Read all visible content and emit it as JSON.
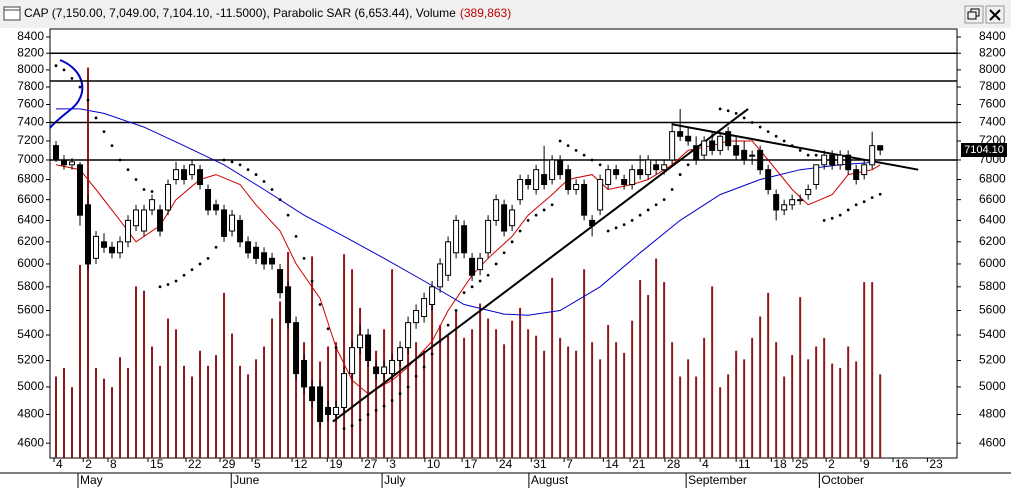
{
  "chart_data": {
    "type": "candlestick",
    "title": "CAP (7,150.00, 7,049.00, 7,104.10, -11.5000), Parabolic SAR (6,653.44), Volume",
    "volume_value": "(389,863)",
    "last_label": "7104.10",
    "log_y": true,
    "ylim": [
      4500,
      8500
    ],
    "yticks": [
      4600,
      4800,
      5000,
      5200,
      5400,
      5600,
      5800,
      6000,
      6200,
      6400,
      6600,
      6800,
      7000,
      7200,
      7400,
      7600,
      7800,
      8000,
      8200,
      8400
    ],
    "xlim": [
      -0.75,
      112.6
    ],
    "xticks": [
      {
        "value": -0.25,
        "label": "4"
      },
      {
        "value": 3.4,
        "label": "2"
      },
      {
        "value": 6.5,
        "label": "8"
      },
      {
        "value": 11.5,
        "label": "15"
      },
      {
        "value": 16.25,
        "label": "22"
      },
      {
        "value": 20.5,
        "label": "29"
      },
      {
        "value": 24.5,
        "label": "5"
      },
      {
        "value": 29.5,
        "label": "12"
      },
      {
        "value": 33.9,
        "label": "19"
      },
      {
        "value": 38.25,
        "label": "27"
      },
      {
        "value": 41.4,
        "label": "3"
      },
      {
        "value": 46.1,
        "label": "10"
      },
      {
        "value": 50.75,
        "label": "17"
      },
      {
        "value": 55.1,
        "label": "24"
      },
      {
        "value": 59.4,
        "label": "31"
      },
      {
        "value": 63.5,
        "label": "7"
      },
      {
        "value": 68.4,
        "label": "14"
      },
      {
        "value": 71.75,
        "label": "21"
      },
      {
        "value": 76.1,
        "label": "28"
      },
      {
        "value": 80.5,
        "label": "4"
      },
      {
        "value": 85,
        "label": "11"
      },
      {
        "value": 89.4,
        "label": "18"
      },
      {
        "value": 92.1,
        "label": "25"
      },
      {
        "value": 96.25,
        "label": "2"
      },
      {
        "value": 100.6,
        "label": "9"
      },
      {
        "value": 104.6,
        "label": "16"
      },
      {
        "value": 108.9,
        "label": "23"
      }
    ],
    "month_ticks": [
      {
        "value": 2.75,
        "label": "May"
      },
      {
        "value": 21.9,
        "label": "June"
      },
      {
        "value": 40.75,
        "label": "July"
      },
      {
        "value": 59.1,
        "label": "August"
      },
      {
        "value": 78.75,
        "label": "September"
      },
      {
        "value": 95.4,
        "label": "October"
      }
    ],
    "candle_up_color": "#ffffff",
    "candle_down_color": "#000000",
    "ohlc": [
      [
        7150,
        7200,
        6980,
        7000
      ],
      [
        7000,
        7050,
        6900,
        6950
      ],
      [
        6950,
        7020,
        6900,
        6980
      ],
      [
        6950,
        6980,
        6350,
        6450
      ],
      [
        6550,
        6650,
        5950,
        6000
      ],
      [
        6050,
        6300,
        6000,
        6250
      ],
      [
        6200,
        6280,
        6100,
        6150
      ],
      [
        6150,
        6200,
        6050,
        6100
      ],
      [
        6100,
        6250,
        6050,
        6200
      ],
      [
        6200,
        6450,
        6150,
        6400
      ],
      [
        6350,
        6550,
        6300,
        6500
      ],
      [
        6300,
        6550,
        6250,
        6500
      ],
      [
        6500,
        6650,
        6450,
        6600
      ],
      [
        6500,
        6550,
        6250,
        6300
      ],
      [
        6500,
        6800,
        6450,
        6750
      ],
      [
        6800,
        6980,
        6750,
        6900
      ],
      [
        6900,
        6950,
        6750,
        6800
      ],
      [
        6850,
        7000,
        6800,
        6950
      ],
      [
        6900,
        6950,
        6700,
        6750
      ],
      [
        6700,
        6750,
        6450,
        6500
      ],
      [
        6550,
        6600,
        6450,
        6500
      ],
      [
        6500,
        6550,
        6200,
        6250
      ],
      [
        6300,
        6500,
        6250,
        6450
      ],
      [
        6400,
        6450,
        6150,
        6200
      ],
      [
        6200,
        6250,
        6050,
        6100
      ],
      [
        6150,
        6200,
        6000,
        6050
      ],
      [
        6100,
        6150,
        5950,
        6000
      ],
      [
        6050,
        6100,
        5950,
        6000
      ],
      [
        5950,
        6000,
        5700,
        5750
      ],
      [
        5800,
        5850,
        5450,
        5500
      ],
      [
        5500,
        5550,
        5050,
        5100
      ],
      [
        5200,
        5250,
        4950,
        5000
      ],
      [
        5000,
        5050,
        4850,
        4900
      ],
      [
        5000,
        5050,
        4700,
        4750
      ],
      [
        4850,
        4900,
        4750,
        4800
      ],
      [
        4800,
        4900,
        4750,
        4850
      ],
      [
        4850,
        5150,
        4800,
        5100
      ],
      [
        5100,
        5350,
        5050,
        5300
      ],
      [
        5300,
        5480,
        5250,
        5400
      ],
      [
        5400,
        5450,
        5150,
        5200
      ],
      [
        5150,
        5200,
        5050,
        5100
      ],
      [
        5100,
        5200,
        5050,
        5150
      ],
      [
        5100,
        5250,
        5050,
        5200
      ],
      [
        5200,
        5350,
        5150,
        5300
      ],
      [
        5300,
        5550,
        5250,
        5500
      ],
      [
        5500,
        5650,
        5450,
        5600
      ],
      [
        5550,
        5750,
        5500,
        5700
      ],
      [
        5650,
        5850,
        5600,
        5800
      ],
      [
        5800,
        6050,
        5750,
        6000
      ],
      [
        5900,
        6250,
        5850,
        6200
      ],
      [
        6100,
        6450,
        6050,
        6400
      ],
      [
        6350,
        6400,
        6050,
        6100
      ],
      [
        6050,
        6100,
        5850,
        5900
      ],
      [
        5950,
        6100,
        5900,
        6050
      ],
      [
        6100,
        6450,
        6050,
        6400
      ],
      [
        6400,
        6650,
        6350,
        6600
      ],
      [
        6550,
        6600,
        6250,
        6300
      ],
      [
        6350,
        6550,
        6300,
        6500
      ],
      [
        6600,
        6850,
        6550,
        6800
      ],
      [
        6800,
        6850,
        6700,
        6750
      ],
      [
        6700,
        6950,
        6650,
        6900
      ],
      [
        6850,
        7150,
        6700,
        6750
      ],
      [
        6800,
        7050,
        6750,
        7000
      ],
      [
        7000,
        7050,
        6800,
        6850
      ],
      [
        6900,
        6950,
        6650,
        6700
      ],
      [
        6700,
        6800,
        6650,
        6750
      ],
      [
        6750,
        6800,
        6400,
        6450
      ],
      [
        6400,
        6450,
        6250,
        6350
      ],
      [
        6500,
        6850,
        6450,
        6800
      ],
      [
        6750,
        6950,
        6700,
        6900
      ],
      [
        6900,
        6950,
        6800,
        6850
      ],
      [
        6800,
        6850,
        6700,
        6750
      ],
      [
        6750,
        6950,
        6700,
        6900
      ],
      [
        6900,
        7050,
        6800,
        6850
      ],
      [
        6850,
        7050,
        6800,
        7000
      ],
      [
        6950,
        7000,
        6850,
        6900
      ],
      [
        6900,
        7000,
        6850,
        6950
      ],
      [
        7000,
        7400,
        6950,
        7300
      ],
      [
        7300,
        7550,
        7200,
        7250
      ],
      [
        7250,
        7350,
        7150,
        7200
      ],
      [
        7150,
        7250,
        6950,
        7000
      ],
      [
        7050,
        7250,
        7000,
        7200
      ],
      [
        7200,
        7300,
        7050,
        7100
      ],
      [
        7100,
        7300,
        7050,
        7250
      ],
      [
        7300,
        7350,
        7100,
        7150
      ],
      [
        7150,
        7250,
        7000,
        7050
      ],
      [
        7100,
        7200,
        6950,
        7000
      ],
      [
        7050,
        7100,
        6950,
        7050
      ],
      [
        7100,
        7150,
        6850,
        6900
      ],
      [
        6900,
        6950,
        6650,
        6700
      ],
      [
        6650,
        6700,
        6400,
        6500
      ],
      [
        6500,
        6600,
        6450,
        6550
      ],
      [
        6550,
        6650,
        6500,
        6600
      ],
      [
        6600,
        6650,
        6550,
        6600
      ],
      [
        6650,
        6750,
        6600,
        6700
      ],
      [
        6750,
        6950,
        6700,
        6950
      ],
      [
        6950,
        7100,
        6900,
        7050
      ],
      [
        7050,
        7100,
        6900,
        6950
      ],
      [
        6950,
        7100,
        6900,
        7050
      ],
      [
        7050,
        7100,
        6850,
        6900
      ],
      [
        6900,
        6950,
        6750,
        6800
      ],
      [
        6850,
        7000,
        6800,
        6950
      ],
      [
        6950,
        7300,
        6900,
        7150
      ],
      [
        7150,
        7150,
        7049,
        7104.1
      ]
    ],
    "volume_lim": [
      0,
      2000000
    ],
    "volume_color": "#8b1a1a",
    "volume": [
      380000,
      420000,
      330000,
      900000,
      1820000,
      420000,
      370000,
      330000,
      470000,
      420000,
      800000,
      780000,
      520000,
      430000,
      650000,
      600000,
      430000,
      380000,
      500000,
      430000,
      480000,
      770000,
      580000,
      430000,
      390000,
      460000,
      520000,
      650000,
      730000,
      960000,
      560000,
      540000,
      940000,
      450000,
      520000,
      540000,
      950000,
      880000,
      700000,
      560000,
      500000,
      600000,
      880000,
      520000,
      600000,
      540000,
      500000,
      760000,
      620000,
      570000,
      680000,
      560000,
      600000,
      720000,
      650000,
      600000,
      530000,
      640000,
      700000,
      600000,
      570000,
      500000,
      840000,
      560000,
      520000,
      500000,
      880000,
      540000,
      460000,
      620000,
      540000,
      490000,
      640000,
      830000,
      760000,
      930000,
      820000,
      540000,
      380000,
      460000,
      380000,
      560000,
      800000,
      330000,
      390000,
      500000,
      460000,
      560000,
      660000,
      770000,
      540000,
      380000,
      480000,
      750000,
      460000,
      520000,
      560000,
      440000,
      420000,
      520000,
      450000,
      820000,
      820000,
      389863
    ],
    "sar_color": "#000000",
    "sar": [
      8050,
      8000,
      7900,
      7800,
      7650,
      7450,
      7300,
      7150,
      7000,
      6900,
      6800,
      6700,
      6680,
      5800,
      5820,
      5850,
      5900,
      5950,
      6000,
      6050,
      6150,
      7000,
      6980,
      6950,
      6900,
      6850,
      6780,
      6700,
      6600,
      6450,
      6250,
      6050,
      5850,
      5650,
      5450,
      5300,
      4700,
      4720,
      4760,
      4800,
      4830,
      4860,
      4900,
      4950,
      5000,
      5080,
      5150,
      5250,
      5350,
      5480,
      5600,
      5750,
      5800,
      5850,
      5900,
      6000,
      6100,
      6200,
      6300,
      6400,
      6450,
      6500,
      6550,
      7200,
      7150,
      7100,
      7050,
      7000,
      6950,
      6300,
      6330,
      6360,
      6400,
      6450,
      6500,
      6550,
      6600,
      6700,
      6850,
      6950,
      7050,
      7150,
      7250,
      7550,
      7530,
      7500,
      7450,
      7400,
      7350,
      7300,
      7250,
      7200,
      7150,
      7100,
      7050,
      7050,
      6400,
      6420,
      6450,
      6500,
      6550,
      6580,
      6620,
      6653.44
    ],
    "series": [
      {
        "color": "#d00000",
        "x": [
          0,
          3,
          5,
          8,
          10,
          13,
          15,
          18,
          20,
          23,
          25,
          28,
          30,
          33,
          35,
          37,
          39,
          42,
          44,
          47,
          49,
          52,
          54,
          57,
          59,
          62,
          64,
          67,
          69,
          72,
          74,
          77,
          79,
          82,
          84,
          87,
          89,
          92,
          94,
          97,
          99,
          102,
          103
        ],
        "values": [
          6950,
          6900,
          6700,
          6400,
          6200,
          6350,
          6600,
          6800,
          6850,
          6750,
          6550,
          6300,
          6000,
          5700,
          5300,
          5050,
          4950,
          5050,
          5150,
          5350,
          5600,
          5900,
          6050,
          6250,
          6450,
          6650,
          6800,
          6850,
          6700,
          6750,
          6800,
          6950,
          7100,
          7150,
          7200,
          7200,
          7000,
          6700,
          6550,
          6650,
          6850,
          6900,
          6950
        ]
      },
      {
        "color": "#0000cc",
        "x": [
          0,
          3,
          6,
          11,
          16,
          21,
          26,
          31,
          36,
          41,
          46,
          51,
          56,
          59,
          63,
          68,
          73,
          78,
          83,
          88,
          93,
          98,
          103
        ],
        "values": [
          7550,
          7550,
          7500,
          7350,
          7150,
          6950,
          6700,
          6450,
          6250,
          6050,
          5850,
          5650,
          5570,
          5560,
          5600,
          5800,
          6100,
          6400,
          6650,
          6800,
          6900,
          6950,
          6980
        ]
      }
    ],
    "trendlines": [
      {
        "x": [
          34.6,
          86.5
        ],
        "values": [
          4750,
          7550
        ]
      },
      {
        "x": [
          77,
          107.75
        ],
        "values": [
          7380,
          6900
        ]
      }
    ],
    "hlines": [
      8200,
      7870,
      7400,
      7000
    ]
  }
}
